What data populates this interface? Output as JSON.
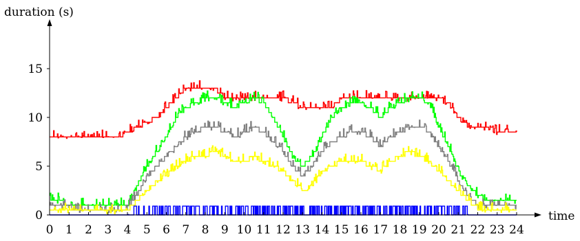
{
  "chart_data": {
    "type": "line",
    "title": "",
    "xlabel": "time",
    "ylabel": "duration (s)",
    "xlim": [
      0,
      24
    ],
    "ylim": [
      0,
      19
    ],
    "x_ticks": [
      "0",
      "1",
      "2",
      "3",
      "4",
      "5",
      "6",
      "7",
      "8",
      "9",
      "10",
      "11",
      "12",
      "13",
      "14",
      "15",
      "16",
      "17",
      "18",
      "19",
      "20",
      "21",
      "22",
      "23",
      "24"
    ],
    "y_ticks": [
      "0",
      "5",
      "10",
      "15"
    ],
    "grid": false,
    "legend": "none",
    "series": [
      {
        "color": "#ff0000",
        "x": [
          0,
          0.5,
          1,
          1.5,
          2,
          2.5,
          3,
          3.5,
          4,
          4.5,
          5,
          5.5,
          6,
          6.5,
          7,
          7.5,
          8,
          8.5,
          9,
          9.5,
          10,
          10.5,
          11,
          11.5,
          12,
          12.5,
          13,
          13.5,
          14,
          14.5,
          15,
          15.5,
          16,
          16.5,
          17,
          17.5,
          18,
          18.5,
          19,
          19.5,
          20,
          20.5,
          21,
          21.5,
          22,
          22.5,
          23,
          23.5,
          24
        ],
        "values": [
          8,
          8,
          8,
          8,
          8,
          8,
          8,
          8,
          8.5,
          9,
          9.5,
          10,
          11,
          12,
          13,
          13,
          13,
          13,
          12,
          12,
          12,
          12,
          12,
          12,
          12,
          11.5,
          11,
          11,
          11,
          11,
          12,
          12,
          12,
          12,
          12,
          12,
          12,
          12,
          12,
          12,
          12,
          11.5,
          10,
          9,
          9,
          9,
          8.5,
          8.5,
          8.5
        ]
      },
      {
        "color": "#00ff00",
        "x": [
          0,
          0.5,
          1,
          1.5,
          2,
          2.5,
          3,
          3.5,
          4,
          4.5,
          5,
          5.5,
          6,
          6.5,
          7,
          7.5,
          8,
          8.5,
          9,
          9.5,
          10,
          10.5,
          11,
          11.5,
          12,
          12.5,
          13,
          13.5,
          14,
          14.5,
          15,
          15.5,
          16,
          16.5,
          17,
          17.5,
          18,
          18.5,
          19,
          19.5,
          20,
          20.5,
          21,
          21.5,
          22,
          22.5,
          23,
          23.5,
          24
        ],
        "values": [
          1.5,
          1.5,
          1,
          1,
          1,
          1,
          1,
          1,
          1,
          3,
          5,
          6.5,
          8,
          10,
          11,
          11.5,
          12,
          12,
          11.5,
          11,
          11.5,
          12,
          11.5,
          10,
          8,
          6,
          5,
          6,
          8,
          10,
          11,
          11.5,
          11.5,
          11,
          10,
          11,
          11.5,
          12,
          12,
          11.5,
          9,
          7,
          4.5,
          3,
          2,
          1.5,
          1.5,
          1.5,
          1.5
        ]
      },
      {
        "color": "#808080",
        "x": [
          0,
          0.5,
          1,
          1.5,
          2,
          2.5,
          3,
          3.5,
          4,
          4.5,
          5,
          5.5,
          6,
          6.5,
          7,
          7.5,
          8,
          8.5,
          9,
          9.5,
          10,
          10.5,
          11,
          11.5,
          12,
          12.5,
          13,
          13.5,
          14,
          14.5,
          15,
          15.5,
          16,
          16.5,
          17,
          17.5,
          18,
          18.5,
          19,
          19.5,
          20,
          20.5,
          21,
          21.5,
          22,
          22.5,
          23,
          23.5,
          24
        ],
        "values": [
          0.8,
          0.8,
          0.8,
          0.5,
          0.5,
          0.5,
          0.5,
          0.5,
          0.8,
          2,
          4,
          5,
          6,
          7,
          8,
          8.5,
          9,
          9,
          8.5,
          8,
          8.5,
          9,
          8.5,
          7.5,
          6.5,
          5,
          4,
          5,
          6.5,
          7.5,
          8,
          8.5,
          8.5,
          8,
          7,
          8,
          8.5,
          9,
          9,
          8.5,
          7,
          5.5,
          3.5,
          2,
          1,
          0.8,
          0.8,
          0.8,
          0.8
        ]
      },
      {
        "color": "#ffff00",
        "x": [
          0,
          0.5,
          1,
          1.5,
          2,
          2.5,
          3,
          3.5,
          4,
          4.5,
          5,
          5.5,
          6,
          6.5,
          7,
          7.5,
          8,
          8.5,
          9,
          9.5,
          10,
          10.5,
          11,
          11.5,
          12,
          12.5,
          13,
          13.5,
          14,
          14.5,
          15,
          15.5,
          16,
          16.5,
          17,
          17.5,
          18,
          18.5,
          19,
          19.5,
          20,
          20.5,
          21,
          21.5,
          22,
          22.5,
          23,
          23.5,
          24
        ],
        "values": [
          0.5,
          0.5,
          0.5,
          0.3,
          0.3,
          0.3,
          0.3,
          0.3,
          0.5,
          1.5,
          2.5,
          3.5,
          4,
          5,
          5.5,
          6,
          6,
          6.5,
          6,
          5.5,
          5.5,
          6,
          5.5,
          5,
          4.5,
          3.5,
          2.5,
          3,
          4.5,
          5,
          5.5,
          5.5,
          5.5,
          5,
          4.5,
          5.5,
          6,
          6.5,
          6,
          5.5,
          4.5,
          3.5,
          2.5,
          1.5,
          0.7,
          0.5,
          0.5,
          0.5,
          0.5
        ]
      },
      {
        "color": "#0000ff",
        "x": [
          0,
          0.5,
          1,
          1.5,
          2,
          2.5,
          3,
          3.5,
          4,
          4.5,
          5,
          5.5,
          6,
          6.5,
          7,
          7.5,
          8,
          8.5,
          9,
          9.5,
          10,
          10.5,
          11,
          11.5,
          12,
          12.5,
          13,
          13.5,
          14,
          14.5,
          15,
          15.5,
          16,
          16.5,
          17,
          17.5,
          18,
          18.5,
          19,
          19.5,
          20,
          20.5,
          21,
          21.5,
          22,
          22.5,
          23,
          23.5,
          24
        ],
        "values": [
          0,
          0,
          0,
          0,
          0,
          0,
          0,
          0,
          0,
          0.5,
          0.8,
          0.5,
          0.8,
          0.5,
          0.8,
          0.5,
          0.8,
          0.5,
          1,
          0.5,
          0.8,
          0.5,
          0.8,
          0.5,
          0.8,
          0.5,
          0.8,
          0.5,
          0.8,
          0.5,
          0.8,
          0.5,
          0.8,
          0.5,
          0.8,
          0.5,
          0.8,
          0.5,
          0.8,
          0.5,
          0.8,
          0.5,
          0.5,
          0,
          0,
          0,
          0,
          0,
          0
        ]
      }
    ]
  }
}
